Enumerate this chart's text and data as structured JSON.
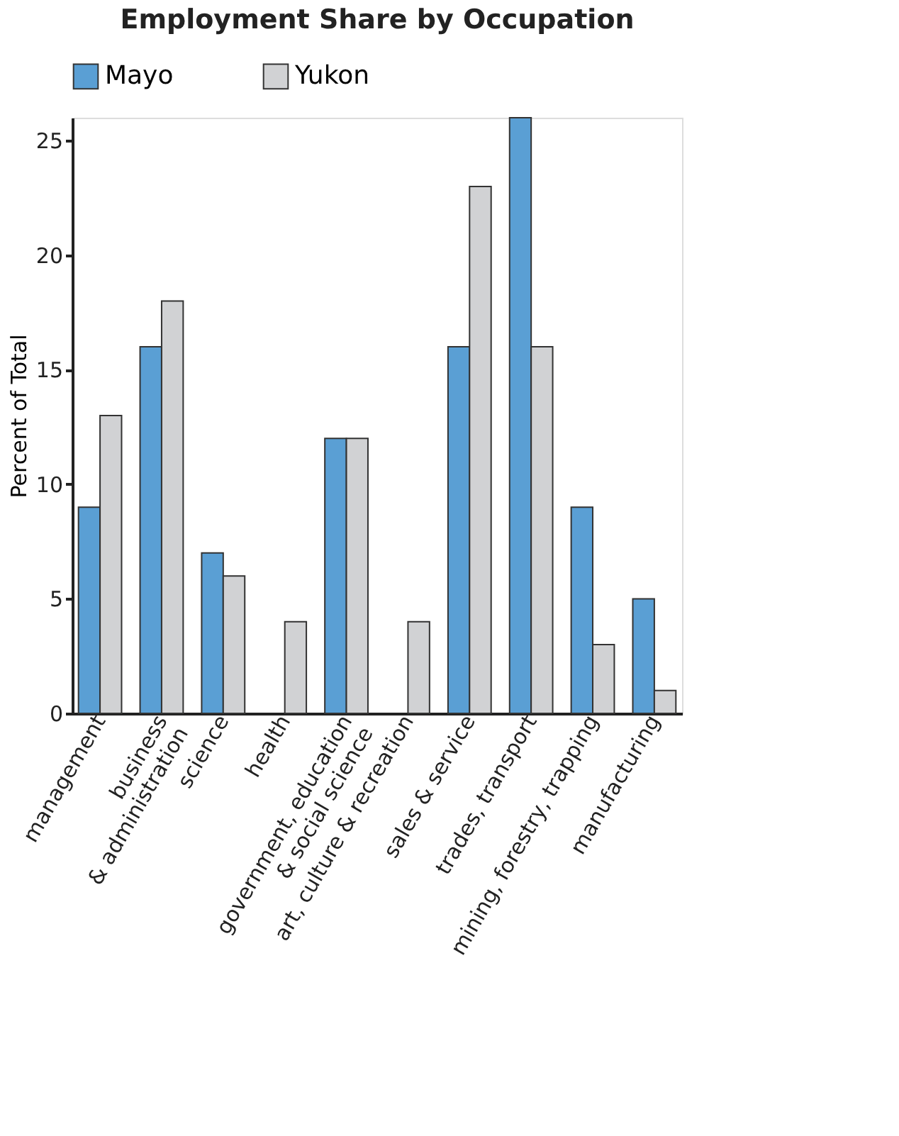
{
  "chart_data": {
    "type": "bar",
    "title": "Employment Share by Occupation",
    "ylabel": "Percent of Total",
    "categories": [
      "management",
      "business\n& administration",
      "science",
      "health",
      "government, education\n& social science",
      "art, culture & recreation",
      "sales & service",
      "trades, transport",
      "mining, forestry, trapping",
      "manufacturing"
    ],
    "series": [
      {
        "name": "Mayo",
        "color": "#5a9fd4",
        "values": [
          9,
          16,
          7,
          null,
          12,
          null,
          16,
          26,
          9,
          5
        ]
      },
      {
        "name": "Yukon",
        "color": "#d1d2d4",
        "values": [
          13,
          18,
          6,
          4,
          12,
          4,
          23,
          16,
          3,
          1
        ]
      }
    ],
    "ylim": [
      0,
      26
    ],
    "yticks": [
      0,
      5,
      10,
      15,
      20,
      25
    ],
    "grid": false,
    "legend": "top"
  }
}
